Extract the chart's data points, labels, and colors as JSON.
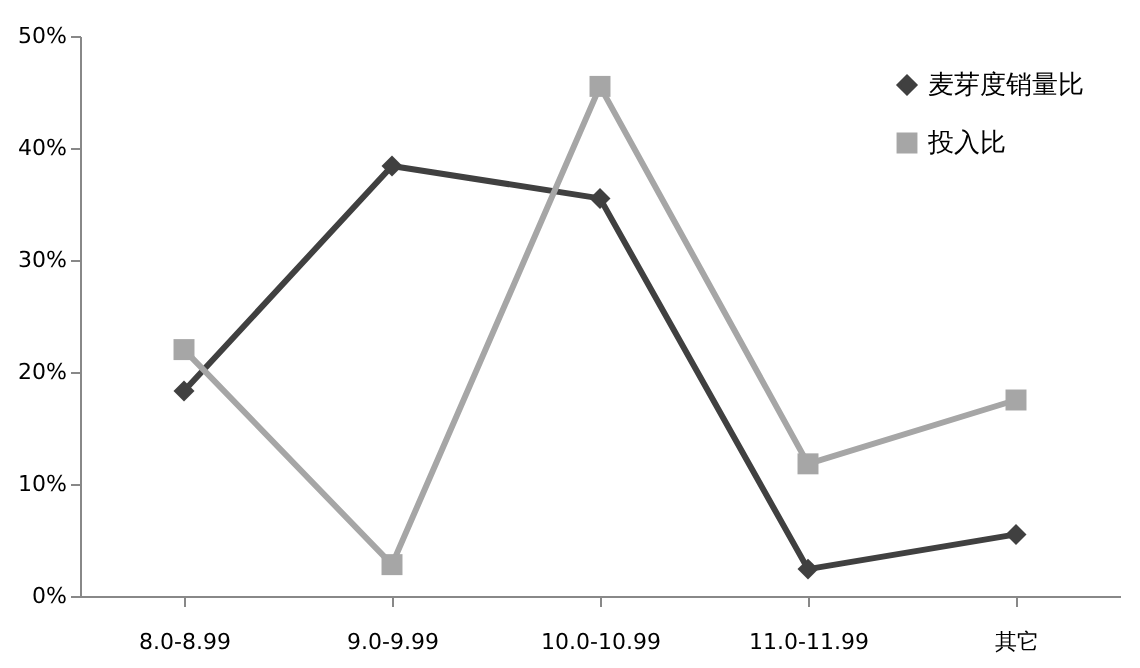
{
  "chart_data": {
    "type": "line",
    "categories": [
      "8.0-8.99",
      "9.0-9.99",
      "10.0-10.99",
      "11.0-11.99",
      "其它"
    ],
    "series": [
      {
        "name": "麦芽度销量比",
        "color": "#404040",
        "marker": "diamond",
        "values": [
          18.3,
          38.4,
          35.5,
          2.4,
          5.5
        ]
      },
      {
        "name": "投入比",
        "color": "#a6a6a6",
        "marker": "square",
        "values": [
          22,
          2.8,
          45.5,
          11.8,
          17.5
        ]
      }
    ],
    "ylim": [
      0,
      50
    ],
    "yticks": [
      {
        "value": 0,
        "label": "0%"
      },
      {
        "value": 10,
        "label": "10%"
      },
      {
        "value": 20,
        "label": "20%"
      },
      {
        "value": 30,
        "label": "30%"
      },
      {
        "value": 40,
        "label": "40%"
      },
      {
        "value": 50,
        "label": "50%"
      }
    ],
    "grid": false,
    "legend": "top right",
    "line_style": "solid"
  }
}
